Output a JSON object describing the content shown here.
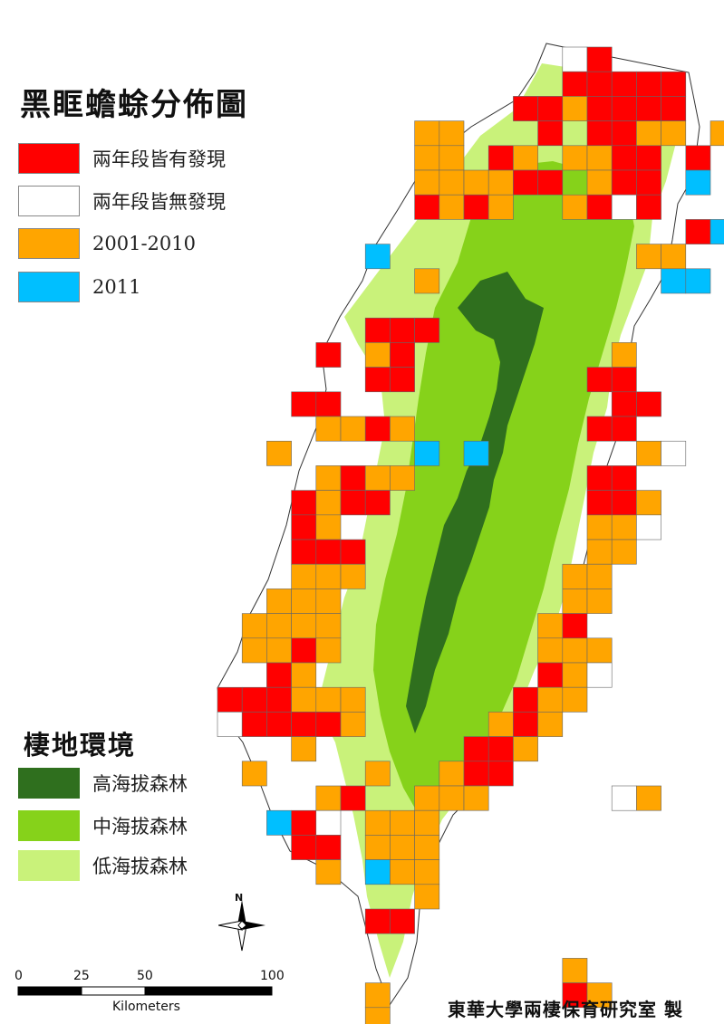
{
  "title": "黑眶蟾蜍分佈圖",
  "legend": {
    "items": [
      {
        "label": "兩年段皆有發現",
        "color": "#ff0000"
      },
      {
        "label": "兩年段皆無發現",
        "color": "#ffffff"
      },
      {
        "label": "2001-2010",
        "color": "#ffa500"
      },
      {
        "label": "2011",
        "color": "#00bfff"
      }
    ]
  },
  "habitat": {
    "title": "棲地環境",
    "items": [
      {
        "label": "高海拔森林",
        "color": "#2f6f1e"
      },
      {
        "label": "中海拔森林",
        "color": "#86d21a"
      },
      {
        "label": "低海拔森林",
        "color": "#c9f27a"
      }
    ]
  },
  "scale_bar": {
    "ticks": [
      "0",
      "25",
      "50",
      "100"
    ],
    "unit": "Kilometers"
  },
  "north_label": "N",
  "credit": "東華大學兩棲保育研究室 製"
}
